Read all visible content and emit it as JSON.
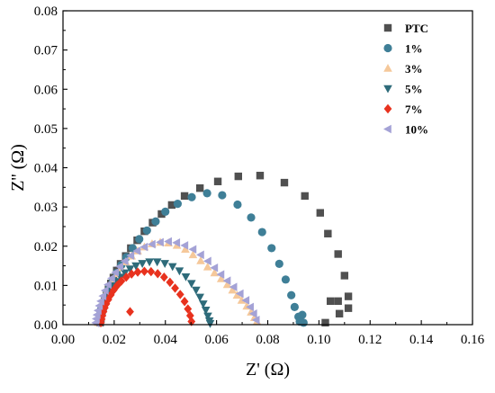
{
  "chart_data": {
    "type": "scatter",
    "title": "",
    "xlabel": "Z' (Ω)",
    "ylabel": "Z'' (Ω)",
    "xlim": [
      0.0,
      0.16
    ],
    "ylim": [
      0.0,
      0.08
    ],
    "xticks": [
      "0.00",
      "0.02",
      "0.04",
      "0.06",
      "0.08",
      "0.10",
      "0.12",
      "0.14",
      "0.16"
    ],
    "yticks": [
      "0.00",
      "0.01",
      "0.02",
      "0.03",
      "0.04",
      "0.05",
      "0.06",
      "0.07",
      "0.08"
    ],
    "grid": false,
    "legend_position": "top-right",
    "series": [
      {
        "name": "PTC",
        "marker": "square",
        "color": "#505050",
        "points": [
          [
            0.0145,
            0.0005
          ],
          [
            0.0148,
            0.0015
          ],
          [
            0.0152,
            0.003
          ],
          [
            0.0157,
            0.0045
          ],
          [
            0.0163,
            0.006
          ],
          [
            0.017,
            0.0075
          ],
          [
            0.0178,
            0.009
          ],
          [
            0.0187,
            0.0105
          ],
          [
            0.0197,
            0.012
          ],
          [
            0.021,
            0.0138
          ],
          [
            0.0225,
            0.0155
          ],
          [
            0.0245,
            0.0175
          ],
          [
            0.0265,
            0.0195
          ],
          [
            0.029,
            0.0215
          ],
          [
            0.0318,
            0.0238
          ],
          [
            0.035,
            0.026
          ],
          [
            0.0385,
            0.0282
          ],
          [
            0.0425,
            0.0305
          ],
          [
            0.0475,
            0.0328
          ],
          [
            0.0535,
            0.0348
          ],
          [
            0.0605,
            0.0365
          ],
          [
            0.0685,
            0.0378
          ],
          [
            0.077,
            0.038
          ],
          [
            0.0865,
            0.0362
          ],
          [
            0.0945,
            0.0328
          ],
          [
            0.1005,
            0.0285
          ],
          [
            0.1035,
            0.0232
          ],
          [
            0.1075,
            0.018
          ],
          [
            0.11,
            0.0125
          ],
          [
            0.1115,
            0.0072
          ],
          [
            0.1115,
            0.0042
          ],
          [
            0.108,
            0.0028
          ],
          [
            0.1075,
            0.006
          ],
          [
            0.1045,
            0.006
          ],
          [
            0.1025,
            0.0005
          ]
        ]
      },
      {
        "name": "1%",
        "marker": "circle",
        "color": "#3f7f97",
        "points": [
          [
            0.0145,
            0.0005
          ],
          [
            0.0148,
            0.0015
          ],
          [
            0.0152,
            0.003
          ],
          [
            0.0157,
            0.0045
          ],
          [
            0.0163,
            0.006
          ],
          [
            0.0172,
            0.0078
          ],
          [
            0.0182,
            0.0095
          ],
          [
            0.0195,
            0.0113
          ],
          [
            0.021,
            0.0132
          ],
          [
            0.0228,
            0.0152
          ],
          [
            0.0248,
            0.0172
          ],
          [
            0.0272,
            0.0195
          ],
          [
            0.0298,
            0.0218
          ],
          [
            0.0328,
            0.024
          ],
          [
            0.0362,
            0.0263
          ],
          [
            0.04,
            0.0288
          ],
          [
            0.0448,
            0.0308
          ],
          [
            0.0503,
            0.0325
          ],
          [
            0.0563,
            0.0335
          ],
          [
            0.0622,
            0.033
          ],
          [
            0.0682,
            0.0306
          ],
          [
            0.0735,
            0.0273
          ],
          [
            0.0778,
            0.0236
          ],
          [
            0.0815,
            0.0195
          ],
          [
            0.0845,
            0.0155
          ],
          [
            0.087,
            0.0115
          ],
          [
            0.0892,
            0.0075
          ],
          [
            0.0905,
            0.0045
          ],
          [
            0.092,
            0.002
          ],
          [
            0.0935,
            0.0025
          ],
          [
            0.094,
            0.0005
          ],
          [
            0.0925,
            0.0008
          ]
        ]
      },
      {
        "name": "3%",
        "marker": "triangle-up",
        "color": "#f5c89a",
        "points": [
          [
            0.0138,
            0.0005
          ],
          [
            0.014,
            0.0015
          ],
          [
            0.0143,
            0.0025
          ],
          [
            0.0147,
            0.0035
          ],
          [
            0.0152,
            0.0047
          ],
          [
            0.0158,
            0.006
          ],
          [
            0.0165,
            0.0073
          ],
          [
            0.0173,
            0.0087
          ],
          [
            0.0183,
            0.01
          ],
          [
            0.0195,
            0.0115
          ],
          [
            0.021,
            0.013
          ],
          [
            0.0226,
            0.0145
          ],
          [
            0.0245,
            0.016
          ],
          [
            0.0268,
            0.0175
          ],
          [
            0.0292,
            0.0188
          ],
          [
            0.0318,
            0.0198
          ],
          [
            0.0348,
            0.0206
          ],
          [
            0.038,
            0.021
          ],
          [
            0.0412,
            0.0208
          ],
          [
            0.0445,
            0.0202
          ],
          [
            0.0478,
            0.0192
          ],
          [
            0.0508,
            0.0178
          ],
          [
            0.0538,
            0.0163
          ],
          [
            0.0565,
            0.0147
          ],
          [
            0.0592,
            0.0132
          ],
          [
            0.0618,
            0.0117
          ],
          [
            0.0642,
            0.0102
          ],
          [
            0.0662,
            0.0088
          ],
          [
            0.068,
            0.0075
          ],
          [
            0.0698,
            0.0062
          ],
          [
            0.0718,
            0.0047
          ],
          [
            0.0735,
            0.0032
          ],
          [
            0.0748,
            0.0018
          ],
          [
            0.0758,
            0.0008
          ]
        ]
      },
      {
        "name": "5%",
        "marker": "triangle-down",
        "color": "#2e6b7a",
        "points": [
          [
            0.014,
            0.0005
          ],
          [
            0.0143,
            0.0015
          ],
          [
            0.0146,
            0.0025
          ],
          [
            0.015,
            0.0035
          ],
          [
            0.0155,
            0.0045
          ],
          [
            0.0161,
            0.0055
          ],
          [
            0.0168,
            0.0066
          ],
          [
            0.0176,
            0.0077
          ],
          [
            0.0186,
            0.0088
          ],
          [
            0.0197,
            0.0099
          ],
          [
            0.021,
            0.011
          ],
          [
            0.0225,
            0.0121
          ],
          [
            0.0242,
            0.0132
          ],
          [
            0.0262,
            0.0142
          ],
          [
            0.0285,
            0.015
          ],
          [
            0.031,
            0.0156
          ],
          [
            0.0338,
            0.016
          ],
          [
            0.0368,
            0.016
          ],
          [
            0.0398,
            0.0156
          ],
          [
            0.0428,
            0.0148
          ],
          [
            0.0455,
            0.0137
          ],
          [
            0.048,
            0.0122
          ],
          [
            0.0502,
            0.0105
          ],
          [
            0.052,
            0.0088
          ],
          [
            0.0535,
            0.007
          ],
          [
            0.0548,
            0.0053
          ],
          [
            0.0558,
            0.0037
          ],
          [
            0.0566,
            0.0022
          ],
          [
            0.0572,
            0.001
          ],
          [
            0.0575,
            0.0003
          ]
        ]
      },
      {
        "name": "7%",
        "marker": "diamond",
        "color": "#e8321e",
        "points": [
          [
            0.0148,
            0.0005
          ],
          [
            0.0151,
            0.0014
          ],
          [
            0.0154,
            0.0023
          ],
          [
            0.0158,
            0.0033
          ],
          [
            0.0163,
            0.0043
          ],
          [
            0.0169,
            0.0053
          ],
          [
            0.0177,
            0.0064
          ],
          [
            0.0187,
            0.0076
          ],
          [
            0.0198,
            0.0088
          ],
          [
            0.0212,
            0.01
          ],
          [
            0.0228,
            0.0111
          ],
          [
            0.0247,
            0.0121
          ],
          [
            0.0268,
            0.0129
          ],
          [
            0.0292,
            0.0134
          ],
          [
            0.0318,
            0.0136
          ],
          [
            0.0344,
            0.0135
          ],
          [
            0.037,
            0.013
          ],
          [
            0.0395,
            0.0121
          ],
          [
            0.0418,
            0.0108
          ],
          [
            0.0438,
            0.0093
          ],
          [
            0.0458,
            0.0077
          ],
          [
            0.0475,
            0.0059
          ],
          [
            0.0488,
            0.004
          ],
          [
            0.0497,
            0.0023
          ],
          [
            0.0502,
            0.0008
          ],
          [
            0.0262,
            0.0033
          ]
        ]
      },
      {
        "name": "10%",
        "marker": "triangle-left",
        "color": "#a4a2d6",
        "points": [
          [
            0.0128,
            0.0005
          ],
          [
            0.013,
            0.0015
          ],
          [
            0.0133,
            0.0025
          ],
          [
            0.0137,
            0.0036
          ],
          [
            0.0142,
            0.0048
          ],
          [
            0.0148,
            0.006
          ],
          [
            0.0156,
            0.0073
          ],
          [
            0.0165,
            0.0087
          ],
          [
            0.0176,
            0.0102
          ],
          [
            0.019,
            0.0118
          ],
          [
            0.0205,
            0.0133
          ],
          [
            0.0222,
            0.0148
          ],
          [
            0.0242,
            0.0162
          ],
          [
            0.0265,
            0.0176
          ],
          [
            0.029,
            0.0188
          ],
          [
            0.0318,
            0.0198
          ],
          [
            0.0348,
            0.0205
          ],
          [
            0.038,
            0.021
          ],
          [
            0.0412,
            0.0212
          ],
          [
            0.0444,
            0.0209
          ],
          [
            0.0476,
            0.0202
          ],
          [
            0.0508,
            0.0192
          ],
          [
            0.0538,
            0.0178
          ],
          [
            0.0566,
            0.0162
          ],
          [
            0.0592,
            0.0145
          ],
          [
            0.0617,
            0.0128
          ],
          [
            0.0642,
            0.0112
          ],
          [
            0.0667,
            0.0096
          ],
          [
            0.0692,
            0.0079
          ],
          [
            0.0715,
            0.0062
          ],
          [
            0.0732,
            0.0045
          ],
          [
            0.0745,
            0.0028
          ],
          [
            0.0755,
            0.0012
          ]
        ]
      }
    ]
  }
}
